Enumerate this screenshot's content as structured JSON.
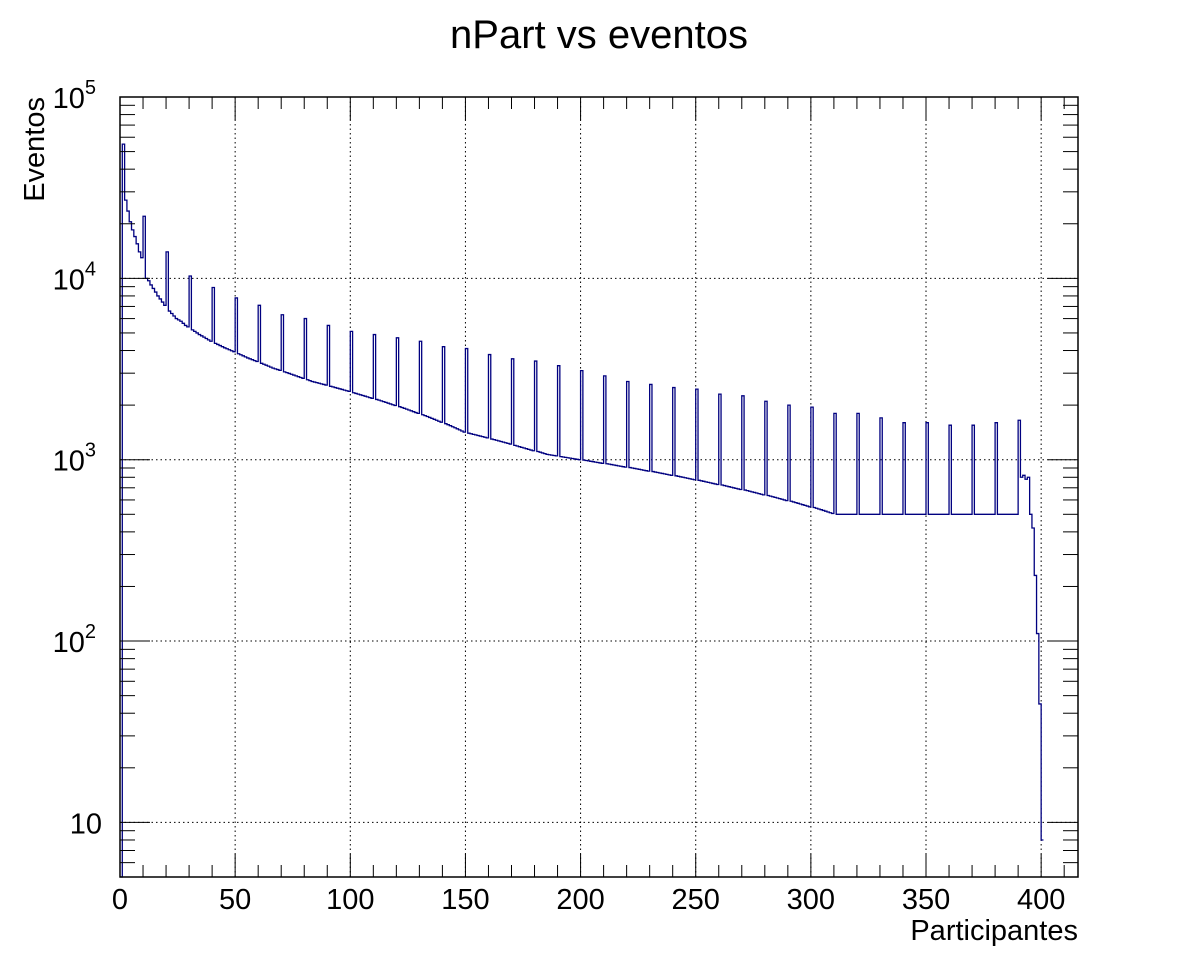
{
  "chart_data": {
    "type": "histogram",
    "title": "nPart vs eventos",
    "xlabel": "Participantes",
    "ylabel": "Eventos",
    "xlim": [
      0,
      416
    ],
    "ylim": [
      5,
      100000
    ],
    "y_scale": "log",
    "grid": true,
    "line_color": "#000080",
    "x_ticks": [
      0,
      50,
      100,
      150,
      200,
      250,
      300,
      350,
      400
    ],
    "y_ticks": [
      {
        "value": 10,
        "base": "10",
        "exp": ""
      },
      {
        "value": 100,
        "base": "10",
        "exp": "2"
      },
      {
        "value": 1000,
        "base": "10",
        "exp": "3"
      },
      {
        "value": 10000,
        "base": "10",
        "exp": "4"
      },
      {
        "value": 100000,
        "base": "10",
        "exp": "5"
      }
    ],
    "bin_width": 1,
    "bins_start": 0,
    "counts": [
      0,
      55000,
      27000,
      23500,
      20500,
      18500,
      17000,
      15500,
      14000,
      13000,
      22000,
      10000,
      9700,
      9200,
      8800,
      8400,
      8000,
      7700,
      7400,
      7100,
      14000,
      6600,
      6400,
      6200,
      6000,
      5900,
      5800,
      5650,
      5500,
      5400,
      10300,
      5200,
      5100,
      5000,
      4900,
      4820,
      4740,
      4660,
      4580,
      4500,
      8900,
      4380,
      4320,
      4260,
      4200,
      4140,
      4090,
      4040,
      3990,
      3940,
      7800,
      3840,
      3790,
      3740,
      3690,
      3640,
      3600,
      3560,
      3520,
      3480,
      7100,
      3400,
      3360,
      3320,
      3280,
      3240,
      3200,
      3170,
      3140,
      3110,
      6300,
      3050,
      3020,
      2990,
      2960,
      2930,
      2900,
      2870,
      2840,
      2810,
      6000,
      2760,
      2730,
      2700,
      2680,
      2660,
      2640,
      2620,
      2600,
      2580,
      5500,
      2540,
      2520,
      2500,
      2480,
      2460,
      2440,
      2420,
      2400,
      2380,
      5100,
      2340,
      2320,
      2300,
      2280,
      2260,
      2240,
      2220,
      2200,
      2180,
      4900,
      2150,
      2130,
      2110,
      2090,
      2070,
      2050,
      2030,
      2010,
      1990,
      4700,
      1960,
      1940,
      1920,
      1900,
      1880,
      1860,
      1840,
      1820,
      1800,
      4500,
      1770,
      1750,
      1730,
      1710,
      1690,
      1670,
      1650,
      1630,
      1610,
      4200,
      1580,
      1560,
      1540,
      1520,
      1500,
      1480,
      1460,
      1440,
      1420,
      4100,
      1400,
      1390,
      1380,
      1370,
      1360,
      1350,
      1340,
      1330,
      1320,
      3800,
      1300,
      1290,
      1280,
      1270,
      1260,
      1250,
      1240,
      1230,
      1220,
      3600,
      1200,
      1190,
      1180,
      1170,
      1160,
      1150,
      1140,
      1130,
      1120,
      3500,
      1110,
      1100,
      1090,
      1080,
      1070,
      1065,
      1060,
      1055,
      1050,
      3300,
      1040,
      1035,
      1030,
      1025,
      1020,
      1015,
      1010,
      1005,
      1000,
      3100,
      995,
      990,
      985,
      980,
      975,
      970,
      965,
      960,
      955,
      2900,
      950,
      945,
      940,
      935,
      930,
      925,
      920,
      915,
      910,
      2700,
      905,
      900,
      895,
      890,
      885,
      880,
      875,
      870,
      865,
      2600,
      860,
      855,
      850,
      845,
      840,
      835,
      830,
      825,
      820,
      2500,
      815,
      810,
      805,
      800,
      795,
      790,
      785,
      780,
      775,
      2450,
      770,
      765,
      760,
      755,
      750,
      745,
      740,
      735,
      730,
      2300,
      725,
      720,
      715,
      710,
      705,
      700,
      695,
      690,
      685,
      2250,
      680,
      675,
      670,
      665,
      660,
      655,
      650,
      645,
      640,
      2100,
      635,
      630,
      625,
      620,
      615,
      610,
      605,
      600,
      595,
      2000,
      590,
      585,
      580,
      575,
      570,
      565,
      560,
      555,
      550,
      1950,
      545,
      540,
      535,
      530,
      525,
      520,
      515,
      510,
      505,
      1800,
      500,
      500,
      500,
      500,
      500,
      500,
      500,
      500,
      500,
      1800,
      500,
      500,
      500,
      500,
      500,
      500,
      500,
      500,
      500,
      1700,
      500,
      500,
      500,
      500,
      500,
      500,
      500,
      500,
      500,
      1600,
      500,
      500,
      500,
      500,
      500,
      500,
      500,
      500,
      500,
      1600,
      500,
      500,
      500,
      500,
      500,
      500,
      500,
      500,
      500,
      1550,
      500,
      500,
      500,
      500,
      500,
      500,
      500,
      500,
      500,
      1550,
      500,
      500,
      500,
      500,
      500,
      500,
      500,
      500,
      500,
      1600,
      500,
      500,
      500,
      500,
      500,
      500,
      500,
      500,
      500,
      1650,
      800,
      820,
      780,
      800,
      500,
      420,
      230,
      110,
      45,
      8
    ]
  }
}
